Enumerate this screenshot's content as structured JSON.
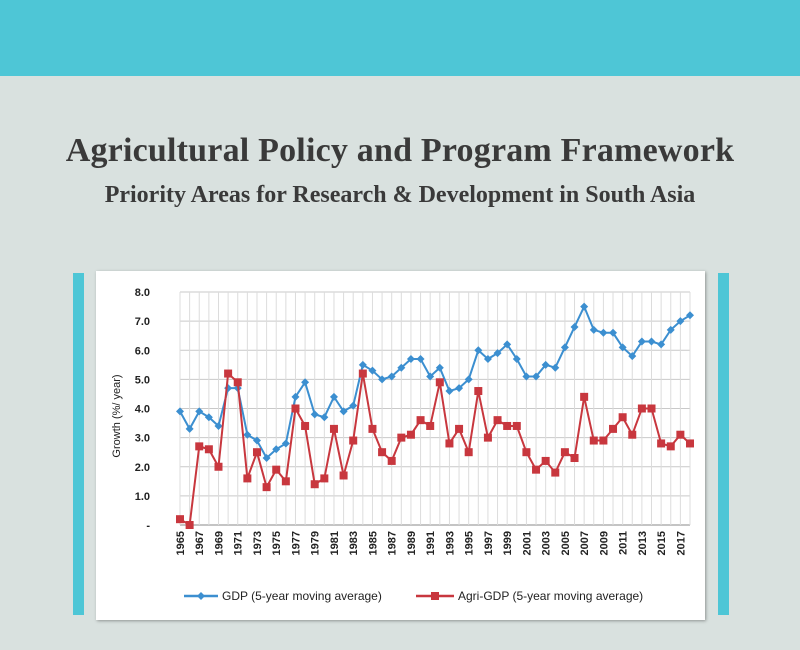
{
  "header": {
    "title": "Agricultural Policy and Program Framework",
    "subtitle": "Priority Areas for Research & Development in South Asia"
  },
  "colors": {
    "accent": "#4ec6d6",
    "background": "#d9e1df",
    "gdp": "#3c8fd0",
    "agri": "#c8373e"
  },
  "chart_data": {
    "type": "line",
    "ylabel": "Growth (%/ year)",
    "xlabel": "",
    "ylim": [
      0,
      8
    ],
    "yticks": [
      "-",
      "1.0",
      "2.0",
      "3.0",
      "4.0",
      "5.0",
      "6.0",
      "7.0",
      "8.0"
    ],
    "grid": true,
    "legend_position": "bottom",
    "x": [
      1965,
      1966,
      1967,
      1968,
      1969,
      1970,
      1971,
      1972,
      1973,
      1974,
      1975,
      1976,
      1977,
      1978,
      1979,
      1980,
      1981,
      1982,
      1983,
      1984,
      1985,
      1986,
      1987,
      1988,
      1989,
      1990,
      1991,
      1992,
      1993,
      1994,
      1995,
      1996,
      1997,
      1998,
      1999,
      2000,
      2001,
      2002,
      2003,
      2004,
      2005,
      2006,
      2007,
      2008,
      2009,
      2010,
      2011,
      2012,
      2013,
      2014,
      2015,
      2016,
      2017,
      2018
    ],
    "xtick_labels": [
      "1965",
      "1967",
      "1969",
      "1971",
      "1973",
      "1975",
      "1977",
      "1979",
      "1981",
      "1983",
      "1985",
      "1987",
      "1989",
      "1991",
      "1993",
      "1995",
      "1997",
      "1999",
      "2001",
      "2003",
      "2005",
      "2007",
      "2009",
      "2011",
      "2013",
      "2015",
      "2017"
    ],
    "series": [
      {
        "name": "GDP (5-year moving average)",
        "marker": "diamond",
        "values": [
          3.9,
          3.3,
          3.9,
          3.7,
          3.4,
          4.7,
          4.7,
          3.1,
          2.9,
          2.3,
          2.6,
          2.8,
          4.4,
          4.9,
          3.8,
          3.7,
          4.4,
          3.9,
          4.1,
          5.5,
          5.3,
          5.0,
          5.1,
          5.4,
          5.7,
          5.7,
          5.1,
          5.4,
          4.6,
          4.7,
          5.0,
          6.0,
          5.7,
          5.9,
          6.2,
          5.7,
          5.1,
          5.1,
          5.5,
          5.4,
          6.1,
          6.8,
          7.5,
          6.7,
          6.6,
          6.6,
          6.1,
          5.8,
          6.3,
          6.3,
          6.2,
          6.7,
          7.0,
          7.2
        ]
      },
      {
        "name": "Agri-GDP (5-year moving average)",
        "marker": "square",
        "values": [
          0.2,
          0.0,
          2.7,
          2.6,
          2.0,
          5.2,
          4.9,
          1.6,
          2.5,
          1.3,
          1.9,
          1.5,
          4.0,
          3.4,
          1.4,
          1.6,
          3.3,
          1.7,
          2.9,
          5.2,
          3.3,
          2.5,
          2.2,
          3.0,
          3.1,
          3.6,
          3.4,
          4.9,
          2.8,
          3.3,
          2.5,
          4.6,
          3.0,
          3.6,
          3.4,
          3.4,
          2.5,
          1.9,
          2.2,
          1.8,
          2.5,
          2.3,
          4.4,
          2.9,
          2.9,
          3.3,
          3.7,
          3.1,
          4.0,
          4.0,
          2.8,
          2.7,
          3.1,
          2.8
        ]
      }
    ]
  }
}
